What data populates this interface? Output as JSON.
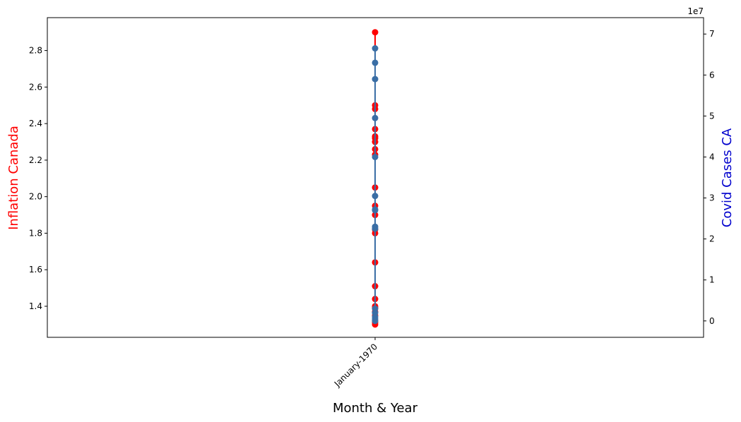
{
  "chart_data": {
    "type": "line",
    "title": "",
    "xlabel": "Month & Year",
    "x_ticks": [
      "January-1970"
    ],
    "y_left": {
      "label": "Inflation Canada",
      "label_color": "#ff0000",
      "ylim": [
        1.23,
        2.98
      ],
      "ticks": [
        1.4,
        1.6,
        1.8,
        2.0,
        2.2,
        2.4,
        2.6,
        2.8
      ],
      "tick_labels": [
        "1.4",
        "1.6",
        "1.8",
        "2.0",
        "2.2",
        "2.4",
        "2.6",
        "2.8"
      ]
    },
    "y_right": {
      "label": "Covid Cases CA",
      "label_color": "#0000cd",
      "offset_text": "1e7",
      "ylim": [
        -0.4,
        7.4
      ],
      "ticks": [
        0,
        1,
        2,
        3,
        4,
        5,
        6,
        7
      ],
      "tick_labels": [
        "0",
        "1",
        "2",
        "3",
        "4",
        "5",
        "6",
        "7"
      ]
    },
    "series": [
      {
        "axis": "left",
        "color": "#ff0000",
        "marker": "circle",
        "x": "January-1970",
        "values": [
          1.3,
          1.31,
          1.32,
          1.35,
          1.37,
          1.39,
          1.4,
          1.44,
          1.51,
          1.64,
          1.8,
          1.82,
          1.9,
          1.95,
          2.05,
          2.23,
          2.26,
          2.3,
          2.32,
          2.33,
          2.37,
          2.48,
          2.5,
          2.9
        ]
      },
      {
        "axis": "right",
        "color": "#3a6ea5",
        "marker": "circle",
        "x": "January-1970",
        "values": [
          0.0,
          0.05,
          0.1,
          0.2,
          0.3,
          2.25,
          2.3,
          2.7,
          2.72,
          3.05,
          4.0,
          4.95,
          5.9,
          6.3,
          6.65
        ]
      }
    ]
  }
}
